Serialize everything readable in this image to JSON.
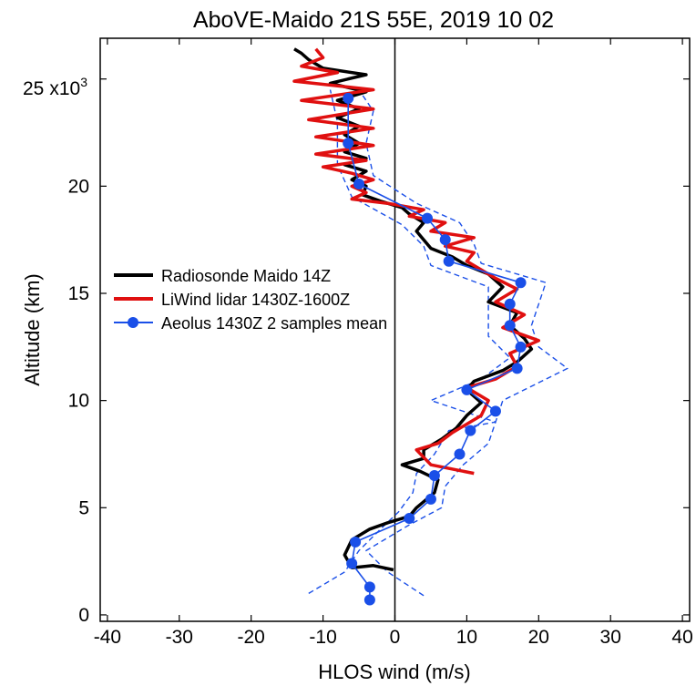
{
  "chart_data": {
    "type": "line",
    "title": "AboVE-Maido 21S 55E, 2019 10 02",
    "xlabel": "HLOS wind (m/s)",
    "ylabel": "Altitude (km)",
    "y_multiplier_label": "x10",
    "y_multiplier_exponent": "3",
    "xlim": [
      -41,
      41
    ],
    "ylim": [
      -0.3,
      26.9
    ],
    "x_ticks": [
      -40,
      -30,
      -20,
      -10,
      0,
      10,
      20,
      30,
      40
    ],
    "x_tick_labels": [
      "-40",
      "-30",
      "-20",
      "-10",
      "0",
      "10",
      "20",
      "30",
      "40"
    ],
    "y_ticks": [
      0,
      5,
      10,
      15,
      20,
      25
    ],
    "y_tick_labels": [
      "0",
      "5",
      "10",
      "15",
      "20",
      "25"
    ],
    "zero_line_x": 0,
    "grid": false,
    "legend_position": "middle-left",
    "series": [
      {
        "name": "Radiosonde Maido 14Z",
        "color": "#000000",
        "style": "solid-thick",
        "points": [
          [
            -0.2,
            2.1
          ],
          [
            -3,
            2.3
          ],
          [
            -6,
            2.2
          ],
          [
            -7,
            2.8
          ],
          [
            -6,
            3.5
          ],
          [
            -3.5,
            4.0
          ],
          [
            -1,
            4.3
          ],
          [
            2,
            4.6
          ],
          [
            3,
            5.0
          ],
          [
            5.5,
            5.7
          ],
          [
            6,
            6.3
          ],
          [
            3.5,
            6.7
          ],
          [
            1,
            7.0
          ],
          [
            4,
            7.3
          ],
          [
            4,
            7.7
          ],
          [
            6.5,
            8.2
          ],
          [
            8.5,
            8.7
          ],
          [
            10,
            9.3
          ],
          [
            12,
            9.9
          ],
          [
            10,
            10.5
          ],
          [
            11,
            10.9
          ],
          [
            15,
            11.4
          ],
          [
            17,
            11.8
          ],
          [
            19,
            12.4
          ],
          [
            18,
            12.9
          ],
          [
            16,
            13.5
          ],
          [
            17,
            14.1
          ],
          [
            13,
            14.6
          ],
          [
            15,
            15.3
          ],
          [
            13,
            15.9
          ],
          [
            10,
            16.3
          ],
          [
            8,
            16.7
          ],
          [
            5,
            17.1
          ],
          [
            4,
            17.5
          ],
          [
            3,
            17.9
          ],
          [
            4,
            18.3
          ],
          [
            2,
            18.7
          ],
          [
            1,
            19.0
          ],
          [
            -2,
            19.3
          ],
          [
            -4.5,
            19.6
          ],
          [
            -4,
            20.0
          ],
          [
            -6,
            20.3
          ],
          [
            -4,
            20.7
          ],
          [
            -7,
            21.0
          ],
          [
            -4,
            21.3
          ],
          [
            -7,
            21.6
          ],
          [
            -5,
            22.0
          ],
          [
            -7,
            22.4
          ],
          [
            -5,
            22.8
          ],
          [
            -8,
            23.2
          ],
          [
            -5,
            23.6
          ],
          [
            -8,
            24.0
          ],
          [
            -4,
            24.4
          ],
          [
            -9,
            24.8
          ],
          [
            -4,
            25.2
          ],
          [
            -10,
            25.5
          ],
          [
            -12,
            25.9
          ],
          [
            -13,
            26.2
          ],
          [
            -14,
            26.4
          ]
        ]
      },
      {
        "name": "LiWind lidar 1430Z-1600Z",
        "color": "#e01010",
        "style": "solid-thick",
        "points": [
          [
            11,
            6.6
          ],
          [
            5,
            7.0
          ],
          [
            3,
            7.7
          ],
          [
            6,
            8.0
          ],
          [
            8,
            8.5
          ],
          [
            12,
            9.3
          ],
          [
            13,
            10.0
          ],
          [
            10,
            10.6
          ],
          [
            14,
            11.0
          ],
          [
            17,
            11.6
          ],
          [
            16,
            12.2
          ],
          [
            20,
            12.8
          ],
          [
            15,
            13.4
          ],
          [
            18,
            14.0
          ],
          [
            14,
            14.6
          ],
          [
            17,
            15.2
          ],
          [
            14,
            15.7
          ],
          [
            12,
            16.1
          ],
          [
            10,
            16.5
          ],
          [
            11,
            16.9
          ],
          [
            7,
            17.2
          ],
          [
            11,
            17.6
          ],
          [
            5,
            17.9
          ],
          [
            7,
            18.3
          ],
          [
            2,
            18.6
          ],
          [
            4,
            18.9
          ],
          [
            -1,
            19.2
          ],
          [
            -6,
            19.4
          ],
          [
            -4,
            19.7
          ],
          [
            -6,
            20.0
          ],
          [
            -3,
            20.3
          ],
          [
            -6,
            20.6
          ],
          [
            -10,
            20.9
          ],
          [
            -4,
            21.2
          ],
          [
            -11,
            21.5
          ],
          [
            -3,
            21.9
          ],
          [
            -11,
            22.3
          ],
          [
            -3,
            22.7
          ],
          [
            -12,
            23.1
          ],
          [
            -3,
            23.6
          ],
          [
            -13,
            24.0
          ],
          [
            -3,
            24.5
          ],
          [
            -14,
            24.9
          ],
          [
            -8,
            25.3
          ],
          [
            -13,
            25.6
          ],
          [
            -10,
            26.0
          ],
          [
            -11,
            26.4
          ]
        ]
      },
      {
        "name": "Aeolus 1430Z 2 samples mean",
        "color": "#1a4fe8",
        "style": "solid-thin-markers",
        "points": [
          [
            -3.5,
            0.7
          ],
          [
            -3.5,
            1.3
          ],
          [
            -6,
            2.4
          ],
          [
            -5.5,
            3.4
          ],
          [
            2,
            4.5
          ],
          [
            5,
            5.4
          ],
          [
            5.5,
            6.5
          ],
          [
            9,
            7.5
          ],
          [
            10.5,
            8.6
          ],
          [
            14,
            9.5
          ],
          [
            10,
            10.5
          ],
          [
            17,
            11.5
          ],
          [
            17.5,
            12.5
          ],
          [
            16,
            13.5
          ],
          [
            16,
            14.5
          ],
          [
            17.5,
            15.5
          ],
          [
            7.5,
            16.5
          ],
          [
            7,
            17.5
          ],
          [
            4.5,
            18.5
          ],
          [
            -5,
            20.1
          ],
          [
            -6.5,
            22.0
          ],
          [
            -6.5,
            24.1
          ]
        ]
      },
      {
        "name": "",
        "color": "#1a4fe8",
        "style": "dashed-thin",
        "points": [
          [
            -12,
            1.0
          ],
          [
            -7,
            2.0
          ],
          [
            -5,
            3.0
          ],
          [
            -2,
            4.0
          ],
          [
            0.5,
            4.8
          ],
          [
            2.5,
            5.7
          ],
          [
            3,
            6.6
          ],
          [
            5.5,
            7.5
          ],
          [
            7.5,
            8.6
          ],
          [
            14,
            9.0
          ],
          [
            5,
            10.0
          ],
          [
            12,
            11.0
          ],
          [
            16,
            12.0
          ],
          [
            13,
            13.0
          ],
          [
            13,
            14.0
          ],
          [
            13,
            15.3
          ],
          [
            5,
            16.3
          ],
          [
            4,
            17.2
          ],
          [
            1,
            18.2
          ],
          [
            -6,
            19.5
          ],
          [
            -8,
            21.0
          ],
          [
            -8,
            23.0
          ],
          [
            -9,
            24.5
          ]
        ]
      },
      {
        "name": "",
        "color": "#1a4fe8",
        "style": "dashed-thin",
        "points": [
          [
            4,
            0.9
          ],
          [
            -1,
            2.0
          ],
          [
            -4,
            3.0
          ],
          [
            2,
            4.2
          ],
          [
            6.5,
            5.0
          ],
          [
            7,
            6.0
          ],
          [
            9.5,
            7.0
          ],
          [
            13,
            8.0
          ],
          [
            14,
            9.0
          ],
          [
            15,
            10.0
          ],
          [
            24,
            11.5
          ],
          [
            20,
            12.5
          ],
          [
            19,
            13.5
          ],
          [
            20,
            14.5
          ],
          [
            21,
            15.5
          ],
          [
            12,
            16.4
          ],
          [
            11,
            17.3
          ],
          [
            9,
            18.3
          ],
          [
            3,
            19.2
          ],
          [
            -3,
            20.5
          ],
          [
            -4,
            22.0
          ],
          [
            -3,
            23.5
          ],
          [
            -5,
            24.5
          ]
        ]
      }
    ]
  }
}
